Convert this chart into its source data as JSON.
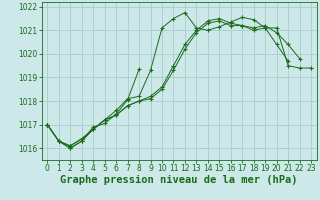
{
  "background_color": "#cce8e8",
  "grid_color": "#aacccc",
  "line_color": "#1a6b1a",
  "marker_color": "#1a6b1a",
  "xlabel": "Graphe pression niveau de la mer (hPa)",
  "xlabel_fontsize": 7.5,
  "ylabel_min": 1015.5,
  "ylabel_max": 1022.2,
  "yticks": [
    1016,
    1017,
    1018,
    1019,
    1020,
    1021,
    1022
  ],
  "xticks": [
    0,
    1,
    2,
    3,
    4,
    5,
    6,
    7,
    8,
    9,
    10,
    11,
    12,
    13,
    14,
    15,
    16,
    17,
    18,
    19,
    20,
    21,
    22,
    23
  ],
  "series": [
    {
      "x": [
        0,
        1,
        2,
        3,
        4,
        5,
        6,
        7,
        8,
        9,
        10,
        11,
        12,
        13,
        14,
        15,
        16,
        17,
        18,
        19,
        20,
        21,
        22,
        23
      ],
      "y": [
        1017.0,
        1016.3,
        1016.0,
        1016.3,
        1016.8,
        1017.2,
        1017.6,
        1018.1,
        1018.2,
        1019.3,
        1021.1,
        1021.5,
        1021.75,
        1021.1,
        1021.0,
        1021.15,
        1021.35,
        1021.55,
        1021.45,
        1021.1,
        1021.1,
        1019.5,
        1019.4,
        1019.4
      ]
    },
    {
      "x": [
        0,
        1,
        2,
        3,
        4,
        5,
        6,
        7,
        8
      ],
      "y": [
        1017.0,
        1016.3,
        1016.0,
        1016.3,
        1016.9,
        1017.05,
        1017.45,
        1018.05,
        1019.35
      ]
    },
    {
      "x": [
        0,
        1,
        2,
        3,
        4,
        5,
        6,
        7,
        8,
        9,
        10,
        11,
        12,
        13,
        14,
        15,
        16,
        17,
        18,
        19,
        20,
        21
      ],
      "y": [
        1017.0,
        1016.3,
        1016.1,
        1016.4,
        1016.8,
        1017.2,
        1017.4,
        1017.8,
        1018.0,
        1018.1,
        1018.5,
        1019.3,
        1020.2,
        1020.9,
        1021.3,
        1021.4,
        1021.2,
        1021.2,
        1021.0,
        1021.1,
        1020.4,
        1019.7
      ]
    },
    {
      "x": [
        0,
        1,
        2,
        3,
        4,
        5,
        6,
        7,
        8,
        9,
        10,
        11,
        12,
        13,
        14,
        15,
        16,
        17,
        18,
        19,
        20,
        21,
        22
      ],
      "y": [
        1017.0,
        1016.3,
        1016.1,
        1016.4,
        1016.8,
        1017.2,
        1017.4,
        1017.8,
        1018.0,
        1018.2,
        1018.6,
        1019.5,
        1020.4,
        1021.0,
        1021.4,
        1021.5,
        1021.3,
        1021.2,
        1021.1,
        1021.2,
        1020.9,
        1020.4,
        1019.8
      ]
    }
  ]
}
